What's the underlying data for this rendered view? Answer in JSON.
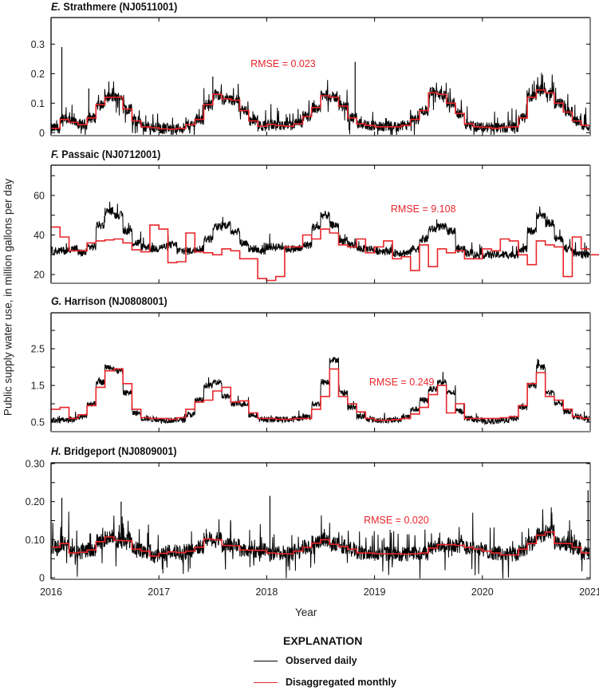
{
  "figure": {
    "y_axis_label": "Public supply water use, in million gallons per day",
    "x_axis_label": "Year",
    "x_ticks": [
      "2016",
      "2017",
      "2018",
      "2019",
      "2020",
      "2021"
    ],
    "legend": {
      "title": "EXPLANATION",
      "entries": [
        {
          "label": "Observed daily",
          "color": "#000000"
        },
        {
          "label": "Disaggregated monthly",
          "color": "#e8262b"
        }
      ]
    }
  },
  "chart_data": [
    {
      "type": "line",
      "panel_letter": "E.",
      "title": "Strathmere (NJ0511001)",
      "xlabel": "Year",
      "ylabel": "Public supply water use, in million gallons per day",
      "xlim": [
        2016,
        2021
      ],
      "ylim": [
        -0.01,
        0.39
      ],
      "y_ticks": [
        0,
        0.1,
        0.2,
        0.3
      ],
      "y_tick_labels": [
        "0",
        "0.1",
        "0.2",
        "0.3"
      ],
      "annotation": "RMSE = 0.023",
      "series": [
        {
          "name": "Disaggregated monthly",
          "color": "#e8262b",
          "step": "monthly",
          "values": [
            0.015,
            0.045,
            0.035,
            0.027,
            0.05,
            0.095,
            0.12,
            0.12,
            0.08,
            0.04,
            0.02,
            0.017,
            0.013,
            0.012,
            0.015,
            0.027,
            0.045,
            0.095,
            0.13,
            0.115,
            0.11,
            0.075,
            0.04,
            0.022,
            0.028,
            0.024,
            0.022,
            0.03,
            0.055,
            0.085,
            0.125,
            0.12,
            0.09,
            0.05,
            0.03,
            0.025,
            0.02,
            0.02,
            0.02,
            0.025,
            0.045,
            0.075,
            0.135,
            0.13,
            0.1,
            0.065,
            0.03,
            0.02,
            0.018,
            0.015,
            0.018,
            0.02,
            0.05,
            0.12,
            0.145,
            0.135,
            0.1,
            0.07,
            0.04,
            0.025
          ]
        },
        {
          "name": "Observed daily",
          "color": "#000000",
          "noise": 0.018,
          "spikes": [
            [
              2016.1,
              0.29
            ],
            [
              2016.35,
              0.15
            ],
            [
              2018.82,
              0.24
            ],
            [
              2017.5,
              0.19
            ]
          ]
        }
      ]
    },
    {
      "type": "line",
      "panel_letter": "F.",
      "title": "Passaic (NJ0712001)",
      "xlabel": "Year",
      "ylabel": "Public supply water use, in million gallons per day",
      "xlim": [
        2016,
        2021
      ],
      "ylim": [
        15.6,
        75.3
      ],
      "y_ticks": [
        20,
        30,
        40,
        50,
        60,
        70
      ],
      "y_tick_labels": [
        "20",
        "",
        "40",
        "",
        "60",
        ""
      ],
      "annotation": "RMSE = 9.108",
      "series": [
        {
          "name": "Disaggregated monthly",
          "color": "#e8262b",
          "step": "monthly",
          "values": [
            44,
            39,
            32,
            32,
            36,
            37,
            37.5,
            38,
            36,
            32.5,
            31.5,
            45,
            43,
            26,
            26.5,
            41,
            31.5,
            31,
            30,
            33,
            32,
            28,
            28,
            18,
            17,
            19,
            34,
            34,
            40,
            38,
            43,
            41,
            35,
            34,
            38,
            31,
            34,
            37,
            28,
            29,
            22,
            35,
            24,
            33,
            31,
            32,
            28,
            28,
            33,
            32,
            38,
            37,
            30,
            25,
            37,
            35,
            34,
            19,
            39,
            33,
            30,
            30
          ]
        },
        {
          "name": "Observed daily",
          "color": "#000000",
          "noise": 2.0,
          "observed_monthly": [
            32,
            32,
            33,
            31,
            34,
            45,
            52,
            50,
            42,
            36,
            34,
            33,
            34,
            35,
            32,
            32,
            33,
            38,
            44,
            45,
            42,
            36,
            33,
            32,
            34,
            34,
            33,
            33,
            35,
            44,
            50,
            45,
            37,
            35,
            33,
            33,
            32,
            32,
            31,
            31,
            33,
            38,
            43,
            44,
            42,
            33,
            31,
            30,
            30,
            30,
            30,
            30,
            33,
            42,
            50,
            46,
            38,
            33,
            31,
            30
          ]
        }
      ]
    },
    {
      "type": "line",
      "panel_letter": "G.",
      "title": "Harrison (NJ0808001)",
      "xlabel": "Year",
      "ylabel": "Public supply water use, in million gallons per day",
      "xlim": [
        2016,
        2021
      ],
      "ylim": [
        0.24,
        3.48
      ],
      "y_ticks": [
        0.5,
        1.0,
        1.5,
        2.0,
        2.5,
        3.0
      ],
      "y_tick_labels": [
        "0.5",
        "",
        "1.5",
        "",
        "2.5",
        ""
      ],
      "annotation": "RMSE = 0.249",
      "series": [
        {
          "name": "Disaggregated monthly",
          "color": "#e8262b",
          "step": "monthly",
          "values": [
            0.85,
            0.9,
            0.6,
            0.7,
            0.95,
            1.45,
            1.9,
            1.95,
            1.55,
            0.85,
            0.62,
            0.6,
            0.6,
            0.58,
            0.62,
            0.85,
            1.05,
            1.1,
            1.35,
            1.45,
            1.05,
            1.08,
            0.75,
            0.6,
            0.6,
            0.58,
            0.58,
            0.6,
            0.6,
            0.85,
            1.2,
            1.95,
            1.2,
            1.0,
            0.78,
            0.6,
            0.55,
            0.55,
            0.57,
            0.6,
            0.72,
            0.9,
            1.25,
            1.5,
            0.75,
            1.0,
            0.6,
            0.6,
            0.6,
            0.6,
            0.62,
            0.65,
            0.95,
            1.55,
            1.85,
            1.2,
            1.1,
            0.85,
            0.65,
            0.6
          ]
        },
        {
          "name": "Observed daily",
          "color": "#000000",
          "noise": 0.08,
          "observed_monthly": [
            0.55,
            0.55,
            0.58,
            0.65,
            1.0,
            1.6,
            2.0,
            1.9,
            1.3,
            0.75,
            0.6,
            0.58,
            0.55,
            0.55,
            0.57,
            0.7,
            1.1,
            1.5,
            1.6,
            1.2,
            1.0,
            1.0,
            0.7,
            0.58,
            0.57,
            0.57,
            0.57,
            0.6,
            0.65,
            1.0,
            1.6,
            2.2,
            1.3,
            0.9,
            0.65,
            0.57,
            0.55,
            0.55,
            0.57,
            0.65,
            0.85,
            1.1,
            1.4,
            1.6,
            1.3,
            0.8,
            0.6,
            0.55,
            0.52,
            0.52,
            0.55,
            0.6,
            0.9,
            1.5,
            2.0,
            1.3,
            1.0,
            0.8,
            0.65,
            0.6
          ]
        }
      ]
    },
    {
      "type": "line",
      "panel_letter": "H.",
      "title": "Bridgeport (NJ0809001)",
      "xlabel": "Year",
      "ylabel": "Public supply water use, in million gallons per day",
      "xlim": [
        2016,
        2021
      ],
      "ylim": [
        -0.004,
        0.302
      ],
      "y_ticks": [
        0,
        0.05,
        0.1,
        0.15,
        0.2,
        0.25,
        0.3
      ],
      "y_tick_labels": [
        "0",
        "",
        "0.10",
        "",
        "0.20",
        "",
        "0.30"
      ],
      "annotation": "RMSE = 0.020",
      "series": [
        {
          "name": "Disaggregated monthly",
          "color": "#e8262b",
          "step": "monthly",
          "values": [
            0.08,
            0.09,
            0.065,
            0.067,
            0.073,
            0.095,
            0.107,
            0.098,
            0.097,
            0.075,
            0.07,
            0.057,
            0.064,
            0.068,
            0.066,
            0.07,
            0.08,
            0.102,
            0.1,
            0.085,
            0.084,
            0.073,
            0.072,
            0.072,
            0.065,
            0.063,
            0.063,
            0.07,
            0.08,
            0.091,
            0.1,
            0.088,
            0.082,
            0.075,
            0.065,
            0.065,
            0.063,
            0.063,
            0.063,
            0.062,
            0.063,
            0.065,
            0.078,
            0.087,
            0.087,
            0.085,
            0.08,
            0.075,
            0.07,
            0.065,
            0.06,
            0.06,
            0.075,
            0.09,
            0.112,
            0.12,
            0.09,
            0.09,
            0.08,
            0.065,
            0.07
          ]
        },
        {
          "name": "Observed daily",
          "color": "#000000",
          "noise": 0.02,
          "spikes": [
            [
              2016.1,
              0.21
            ],
            [
              2016.65,
              0.2
            ],
            [
              2018.03,
              0.215
            ],
            [
              2020.98,
              0.23
            ]
          ]
        }
      ]
    }
  ]
}
